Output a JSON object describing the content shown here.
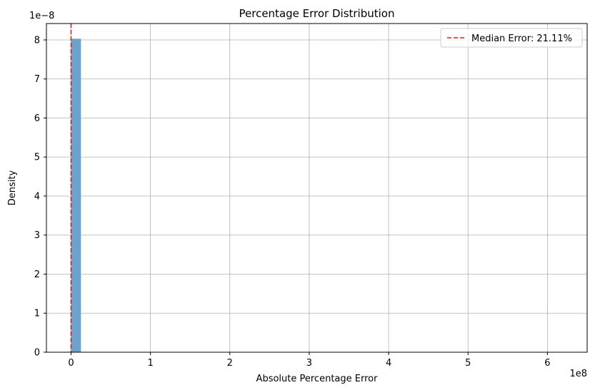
{
  "chart_data": {
    "type": "bar",
    "title": "Percentage Error Distribution",
    "xlabel": "Absolute Percentage Error",
    "ylabel": "Density",
    "x_offset_label": "1e8",
    "y_offset_label": "1e−8",
    "xlim": [
      -0.31,
      6.5
    ],
    "ylim": [
      0,
      8.42
    ],
    "x_ticks": [
      0,
      1,
      2,
      3,
      4,
      5,
      6
    ],
    "x_tick_labels": [
      "0",
      "1",
      "2",
      "3",
      "4",
      "5",
      "6"
    ],
    "y_ticks": [
      0,
      1,
      2,
      3,
      4,
      5,
      6,
      7,
      8
    ],
    "y_tick_labels": [
      "0",
      "1",
      "2",
      "3",
      "4",
      "5",
      "6",
      "7",
      "8"
    ],
    "grid": true,
    "bars": [
      {
        "x_start": 0.0,
        "x_end": 0.125,
        "value": 8.03
      }
    ],
    "median_line": {
      "x": 0.0,
      "label": "Median Error: 21.11%",
      "color": "#e41a1c"
    },
    "legend_position": "top-right",
    "bar_color": "#6ba3cc",
    "grid_color": "#b0b0b0"
  }
}
